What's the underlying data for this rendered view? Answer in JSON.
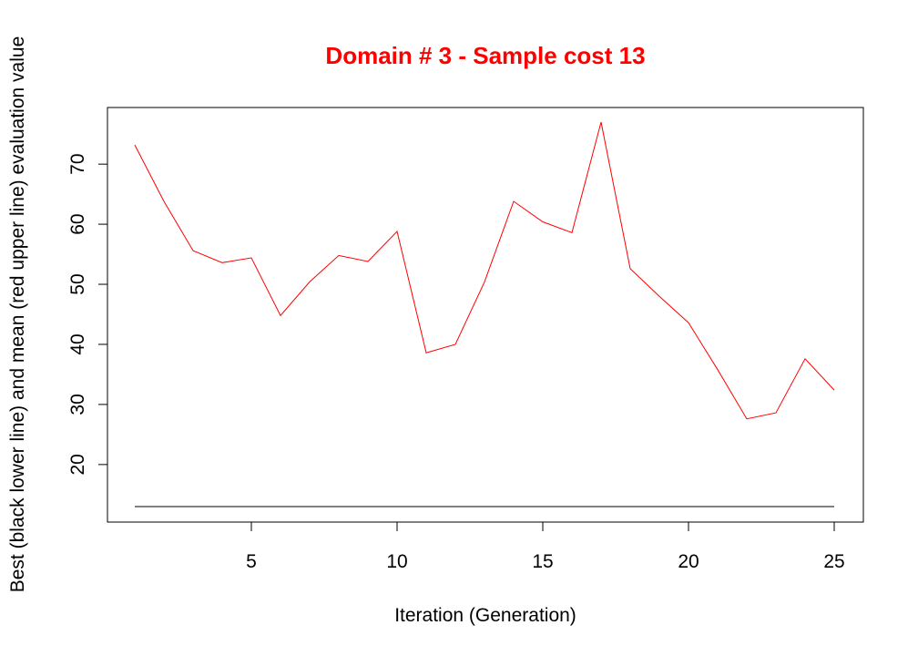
{
  "chart_data": {
    "type": "line",
    "title": "Domain # 3  - Sample cost 13",
    "xlabel": "Iteration (Generation)",
    "ylabel": "Best (black lower line) and mean (red upper line) evaluation value",
    "x": [
      1,
      2,
      3,
      4,
      5,
      6,
      7,
      8,
      9,
      10,
      11,
      12,
      13,
      14,
      15,
      16,
      17,
      18,
      19,
      20,
      21,
      22,
      23,
      24,
      25
    ],
    "xlim": [
      1,
      25
    ],
    "ylim": [
      13,
      77
    ],
    "x_ticks": [
      5,
      10,
      15,
      20,
      25
    ],
    "y_ticks": [
      20,
      30,
      40,
      50,
      60,
      70
    ],
    "grid": false,
    "series": [
      {
        "color": "#ff0000",
        "values": [
          73.2,
          63.8,
          55.6,
          53.6,
          54.4,
          44.8,
          50.4,
          54.8,
          53.8,
          58.8,
          38.6,
          40.0,
          50.4,
          63.8,
          60.4,
          58.6,
          77.0,
          52.6,
          48.0,
          43.6,
          35.8,
          27.6,
          28.6,
          37.6,
          32.4
        ]
      },
      {
        "color": "#000000",
        "values": [
          13,
          13,
          13,
          13,
          13,
          13,
          13,
          13,
          13,
          13,
          13,
          13,
          13,
          13,
          13,
          13,
          13,
          13,
          13,
          13,
          13,
          13,
          13,
          13,
          13
        ]
      }
    ]
  },
  "colors": {
    "title": "#ff0000",
    "axes": "#000000"
  }
}
